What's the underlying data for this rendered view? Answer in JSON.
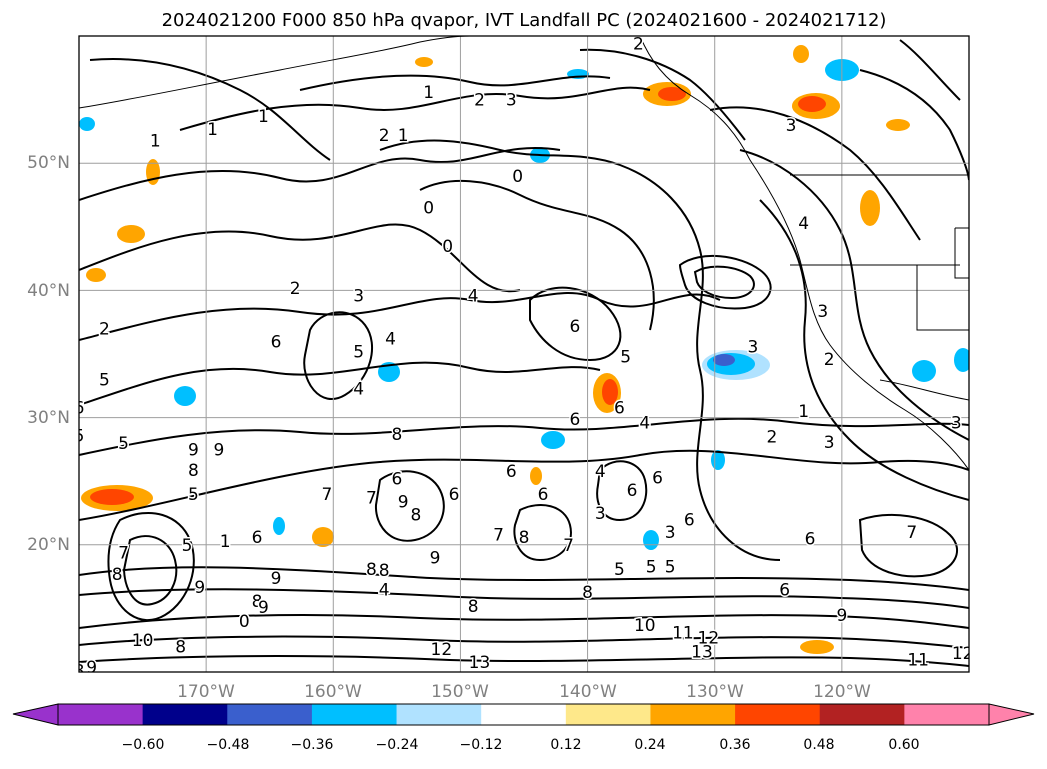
{
  "title": "2024021200 F000 850 hPa qvapor, IVT Landfall PC (2024021600 - 2024021712)",
  "map": {
    "lat_labels": [
      "50°N",
      "40°N",
      "30°N",
      "20°N"
    ],
    "lat_values": [
      50,
      40,
      30,
      20
    ],
    "lon_labels": [
      "170°W",
      "160°W",
      "150°W",
      "140°W",
      "130°W",
      "120°W"
    ],
    "lon_values": [
      -170,
      -160,
      -150,
      -140,
      -130,
      -120
    ],
    "lat_range": [
      10,
      60
    ],
    "lon_range": [
      -180,
      -110
    ],
    "tick_label_color": "#808080",
    "grid": true,
    "contour_labels": [
      {
        "text": "1",
        "lon": -174,
        "lat": 51.8
      },
      {
        "text": "1",
        "lon": -169.5,
        "lat": 52.7
      },
      {
        "text": "1",
        "lon": -165.5,
        "lat": 53.7
      },
      {
        "text": "1",
        "lon": -152.5,
        "lat": 55.6
      },
      {
        "text": "2",
        "lon": -148.5,
        "lat": 55.0
      },
      {
        "text": "3",
        "lon": -146,
        "lat": 55.0
      },
      {
        "text": "2",
        "lon": -156,
        "lat": 52.2
      },
      {
        "text": "1",
        "lon": -154.5,
        "lat": 52.2
      },
      {
        "text": "0",
        "lon": -145.5,
        "lat": 49.0
      },
      {
        "text": "2",
        "lon": -136,
        "lat": 59.4
      },
      {
        "text": "3",
        "lon": -124,
        "lat": 53.0
      },
      {
        "text": "4",
        "lon": -123,
        "lat": 45.3
      },
      {
        "text": "0",
        "lon": -151,
        "lat": 43.5
      },
      {
        "text": "0",
        "lon": -152.5,
        "lat": 46.5
      },
      {
        "text": "4",
        "lon": -149,
        "lat": 39.6
      },
      {
        "text": "3",
        "lon": -158,
        "lat": 39.6
      },
      {
        "text": "2",
        "lon": -163,
        "lat": 40.2
      },
      {
        "text": "2",
        "lon": -178,
        "lat": 37.0
      },
      {
        "text": "6",
        "lon": -141,
        "lat": 37.2
      },
      {
        "text": "6",
        "lon": -164.5,
        "lat": 36.0
      },
      {
        "text": "5",
        "lon": -158,
        "lat": 35.2
      },
      {
        "text": "4",
        "lon": -155.5,
        "lat": 36.2
      },
      {
        "text": "4",
        "lon": -158,
        "lat": 32.3
      },
      {
        "text": "5",
        "lon": -137,
        "lat": 34.8
      },
      {
        "text": "3",
        "lon": -127,
        "lat": 35.6
      },
      {
        "text": "5",
        "lon": -178,
        "lat": 33.0
      },
      {
        "text": "6",
        "lon": -180,
        "lat": 30.8
      },
      {
        "text": "5",
        "lon": -180,
        "lat": 28.6
      },
      {
        "text": "5",
        "lon": -176.5,
        "lat": 28.0
      },
      {
        "text": "9",
        "lon": -171,
        "lat": 27.5
      },
      {
        "text": "9",
        "lon": -169,
        "lat": 27.5
      },
      {
        "text": "8",
        "lon": -171,
        "lat": 25.9
      },
      {
        "text": "5",
        "lon": -171,
        "lat": 24.0
      },
      {
        "text": "8",
        "lon": -155,
        "lat": 28.7
      },
      {
        "text": "6",
        "lon": -141,
        "lat": 29.9
      },
      {
        "text": "6",
        "lon": -137.5,
        "lat": 30.8
      },
      {
        "text": "4",
        "lon": -135.5,
        "lat": 29.6
      },
      {
        "text": "2",
        "lon": -125.5,
        "lat": 28.5
      },
      {
        "text": "1",
        "lon": -123,
        "lat": 30.5
      },
      {
        "text": "3",
        "lon": -121,
        "lat": 28.1
      },
      {
        "text": "3",
        "lon": -111,
        "lat": 29.6
      },
      {
        "text": "3",
        "lon": -121.5,
        "lat": 38.4
      },
      {
        "text": "2",
        "lon": -121,
        "lat": 34.6
      },
      {
        "text": "6",
        "lon": -134.5,
        "lat": 25.3
      },
      {
        "text": "6",
        "lon": -136.5,
        "lat": 24.3
      },
      {
        "text": "4",
        "lon": -139,
        "lat": 25.8
      },
      {
        "text": "6",
        "lon": -146,
        "lat": 25.8
      },
      {
        "text": "6",
        "lon": -143.5,
        "lat": 24.0
      },
      {
        "text": "6",
        "lon": -150.5,
        "lat": 24.0
      },
      {
        "text": "6",
        "lon": -155,
        "lat": 25.2
      },
      {
        "text": "7",
        "lon": -160.5,
        "lat": 24.0
      },
      {
        "text": "7",
        "lon": -157,
        "lat": 23.7
      },
      {
        "text": "9",
        "lon": -154.5,
        "lat": 23.4
      },
      {
        "text": "8",
        "lon": -153.5,
        "lat": 22.4
      },
      {
        "text": "7",
        "lon": -147,
        "lat": 20.8
      },
      {
        "text": "8",
        "lon": -145,
        "lat": 20.6
      },
      {
        "text": "7",
        "lon": -141.5,
        "lat": 20.0
      },
      {
        "text": "3",
        "lon": -139,
        "lat": 22.5
      },
      {
        "text": "3",
        "lon": -133.5,
        "lat": 21.0
      },
      {
        "text": "6",
        "lon": -132,
        "lat": 22.0
      },
      {
        "text": "5",
        "lon": -137.5,
        "lat": 18.1
      },
      {
        "text": "5",
        "lon": -135,
        "lat": 18.3
      },
      {
        "text": "5",
        "lon": -133.5,
        "lat": 18.3
      },
      {
        "text": "6",
        "lon": -122.5,
        "lat": 20.5
      },
      {
        "text": "7",
        "lon": -114.5,
        "lat": 21.0
      },
      {
        "text": "6",
        "lon": -124.5,
        "lat": 16.5
      },
      {
        "text": "9",
        "lon": -120,
        "lat": 14.5
      },
      {
        "text": "9",
        "lon": -152,
        "lat": 19.0
      },
      {
        "text": "8",
        "lon": -157,
        "lat": 18.1
      },
      {
        "text": "8",
        "lon": -156,
        "lat": 18.0
      },
      {
        "text": "4",
        "lon": -156,
        "lat": 16.5
      },
      {
        "text": "9",
        "lon": -164.5,
        "lat": 17.4
      },
      {
        "text": "9",
        "lon": -170.5,
        "lat": 16.7
      },
      {
        "text": "8",
        "lon": -166,
        "lat": 15.6
      },
      {
        "text": "9",
        "lon": -165.5,
        "lat": 15.1
      },
      {
        "text": "8",
        "lon": -149,
        "lat": 15.2
      },
      {
        "text": "8",
        "lon": -140,
        "lat": 16.3
      },
      {
        "text": "7",
        "lon": -176.5,
        "lat": 19.4
      },
      {
        "text": "5",
        "lon": -171.5,
        "lat": 20.0
      },
      {
        "text": "1",
        "lon": -168.5,
        "lat": 20.3
      },
      {
        "text": "6",
        "lon": -166,
        "lat": 20.6
      },
      {
        "text": "8",
        "lon": -177,
        "lat": 17.7
      },
      {
        "text": "0",
        "lon": -167,
        "lat": 14.0
      },
      {
        "text": "8",
        "lon": -172,
        "lat": 12.0
      },
      {
        "text": "10",
        "lon": -175,
        "lat": 12.5
      },
      {
        "text": "9",
        "lon": -179,
        "lat": 10.4
      },
      {
        "text": "8",
        "lon": -180,
        "lat": 10.1
      },
      {
        "text": "12",
        "lon": -151.5,
        "lat": 11.8
      },
      {
        "text": "13",
        "lon": -148.5,
        "lat": 10.8
      },
      {
        "text": "10",
        "lon": -135.5,
        "lat": 13.7
      },
      {
        "text": "11",
        "lon": -132.5,
        "lat": 13.1
      },
      {
        "text": "12",
        "lon": -130.5,
        "lat": 12.7
      },
      {
        "text": "13",
        "lon": -131,
        "lat": 11.6
      },
      {
        "text": "11",
        "lon": -114,
        "lat": 11.0
      },
      {
        "text": "12",
        "lon": -110.5,
        "lat": 11.5
      }
    ]
  },
  "colorbar": {
    "tick_labels": [
      "−0.60",
      "−0.48",
      "−0.36",
      "−0.24",
      "−0.12",
      "0.12",
      "0.24",
      "0.36",
      "0.48",
      "0.60"
    ],
    "bins": [
      {
        "color": "#9932cc"
      },
      {
        "color": "#00008b"
      },
      {
        "color": "#3a5fcd"
      },
      {
        "color": "#00bfff"
      },
      {
        "color": "#b0e2ff"
      },
      {
        "color": "#ffffff"
      },
      {
        "color": "#fee88a"
      },
      {
        "color": "#ffa500"
      },
      {
        "color": "#ff4500"
      },
      {
        "color": "#b22222"
      },
      {
        "color": "#ff82ab"
      },
      {
        "color": "#ff82ab"
      }
    ]
  }
}
